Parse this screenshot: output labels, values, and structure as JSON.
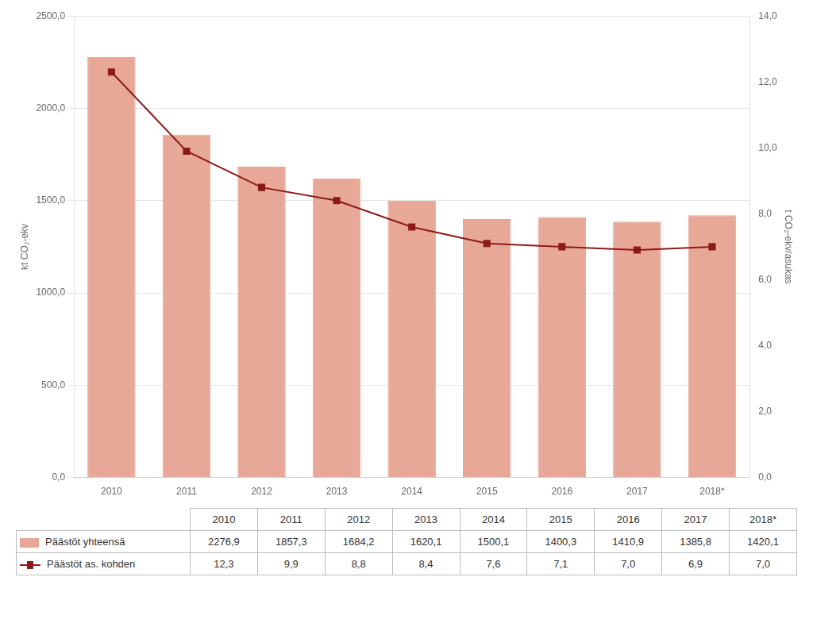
{
  "chart_data": {
    "type": "bar",
    "categories": [
      "2010",
      "2011",
      "2012",
      "2013",
      "2014",
      "2015",
      "2016",
      "2017",
      "2018*"
    ],
    "series": [
      {
        "name": "Päästöt yhteensä",
        "type": "bar",
        "color": "#e8a898",
        "values": [
          2276.9,
          1857.3,
          1684.2,
          1620.1,
          1500.1,
          1400.3,
          1410.9,
          1385.8,
          1420.1
        ],
        "value_labels": [
          "2276,9",
          "1857,3",
          "1684,2",
          "1620,1",
          "1500,1",
          "1400,3",
          "1410,9",
          "1385,8",
          "1420,1"
        ]
      },
      {
        "name": "Päästöt as. kohden",
        "type": "line",
        "axis": "y2",
        "color": "#8b1a1a",
        "marker": "square",
        "values": [
          12.3,
          9.9,
          8.8,
          8.4,
          7.6,
          7.1,
          7.0,
          6.9,
          7.0
        ],
        "value_labels": [
          "12,3",
          "9,9",
          "8,8",
          "8,4",
          "7,6",
          "7,1",
          "7,0",
          "6,9",
          "7,0"
        ]
      }
    ],
    "ylabel": "kt CO₂-ekv",
    "y2label": "t CO₂-ekv/asukas",
    "ylim": [
      0,
      2500
    ],
    "yticks": [
      {
        "value": 0,
        "label": "0,0"
      },
      {
        "value": 500,
        "label": "500,0"
      },
      {
        "value": 1000,
        "label": "1000,0"
      },
      {
        "value": 1500,
        "label": "1500,0"
      },
      {
        "value": 2000,
        "label": "2000,0"
      },
      {
        "value": 2500,
        "label": "2500,0"
      }
    ],
    "y2lim": [
      0,
      14.0
    ],
    "y2ticks": [
      {
        "value": 0,
        "label": "0,0"
      },
      {
        "value": 2,
        "label": "2,0"
      },
      {
        "value": 4,
        "label": "4,0"
      },
      {
        "value": 6,
        "label": "6,0"
      },
      {
        "value": 8,
        "label": "8,0"
      },
      {
        "value": 10,
        "label": "10,0"
      },
      {
        "value": 12,
        "label": "12,0"
      },
      {
        "value": 14,
        "label": "14,0"
      }
    ],
    "grid": true,
    "data_labels": true
  }
}
